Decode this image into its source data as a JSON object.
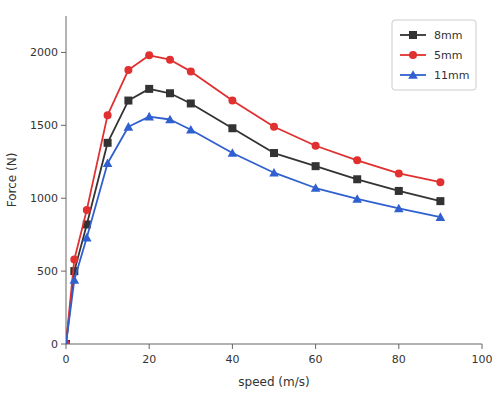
{
  "chart_data": {
    "type": "line",
    "xlabel": "speed (m/s)",
    "ylabel": "Force (N)",
    "x": [
      0,
      2,
      5,
      10,
      15,
      20,
      25,
      30,
      40,
      50,
      60,
      70,
      80,
      90
    ],
    "series": [
      {
        "name": "8mm",
        "color": "#333333",
        "marker": "square",
        "values": [
          0,
          500,
          820,
          1380,
          1670,
          1750,
          1720,
          1650,
          1480,
          1310,
          1220,
          1130,
          1050,
          980
        ]
      },
      {
        "name": "5mm",
        "color": "#e03030",
        "marker": "circle",
        "values": [
          0,
          580,
          920,
          1570,
          1880,
          1980,
          1950,
          1870,
          1670,
          1490,
          1360,
          1260,
          1170,
          1110
        ]
      },
      {
        "name": "11mm",
        "color": "#3060d0",
        "marker": "triangle",
        "values": [
          0,
          440,
          730,
          1240,
          1490,
          1560,
          1540,
          1470,
          1310,
          1175,
          1070,
          995,
          930,
          870
        ]
      }
    ],
    "xlim": [
      0,
      100
    ],
    "ylim": [
      0,
      2250
    ],
    "xticks": [
      0,
      20,
      40,
      60,
      80,
      100
    ],
    "yticks": [
      0,
      500,
      1000,
      1500,
      2000
    ],
    "grid": false,
    "legend": "upper right"
  }
}
